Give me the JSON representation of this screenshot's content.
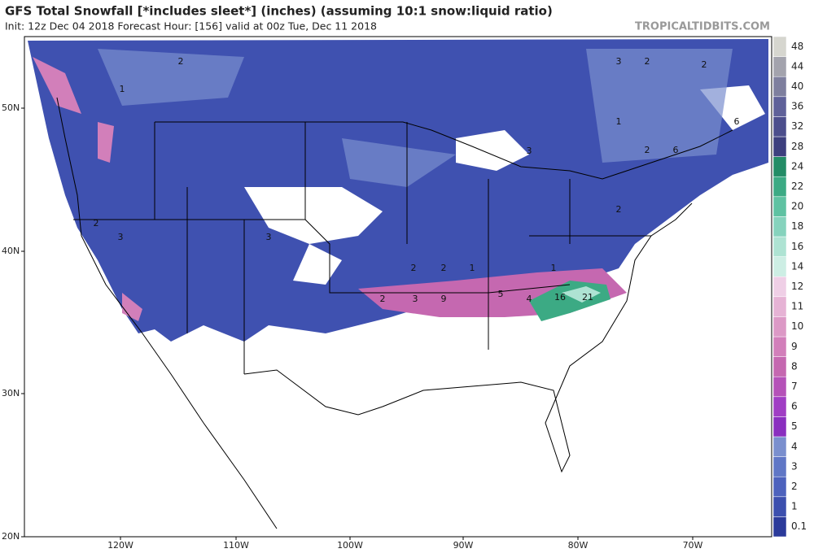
{
  "header": {
    "title": "GFS Total Snowfall [*includes sleet*] (inches) (assuming 10:1 snow:liquid ratio)",
    "subtitle": "Init: 12z Dec 04 2018   Forecast Hour: [156]   valid at 00z Tue, Dec 11 2018",
    "brand": "TROPICALTIDBITS.COM"
  },
  "map": {
    "lat_labels": [
      "50N",
      "40N",
      "30N",
      "20N"
    ],
    "lon_labels": [
      "120W",
      "110W",
      "100W",
      "90W",
      "80W",
      "70W"
    ],
    "contour_labels": [
      "2",
      "1",
      "3",
      "3",
      "3",
      "2",
      "2",
      "2",
      "1",
      "6",
      "2",
      "3",
      "9",
      "5",
      "4",
      "16",
      "21",
      "2",
      "1",
      "3",
      "2",
      "2",
      "1",
      "2",
      "6"
    ]
  },
  "colorbar": {
    "levels": [
      0.1,
      1,
      2,
      3,
      4,
      5,
      6,
      7,
      8,
      9,
      10,
      11,
      12,
      14,
      16,
      18,
      20,
      22,
      24,
      28,
      32,
      36,
      40,
      44,
      48
    ],
    "colors": [
      "#2b3a9a",
      "#3c4fae",
      "#4d62bd",
      "#6077c6",
      "#7a8fce",
      "#8a2fbf",
      "#a03ec4",
      "#b552b8",
      "#c568b0",
      "#d27fba",
      "#dc99c6",
      "#e6b3d5",
      "#efcfe6",
      "#cdeee4",
      "#aee3d3",
      "#86d3bd",
      "#5fc2a2",
      "#3caa84",
      "#238c66",
      "#3d3f7e",
      "#4c4e8c",
      "#5f6199",
      "#7e7f9e",
      "#a3a3ad",
      "#d6d6cf"
    ]
  }
}
